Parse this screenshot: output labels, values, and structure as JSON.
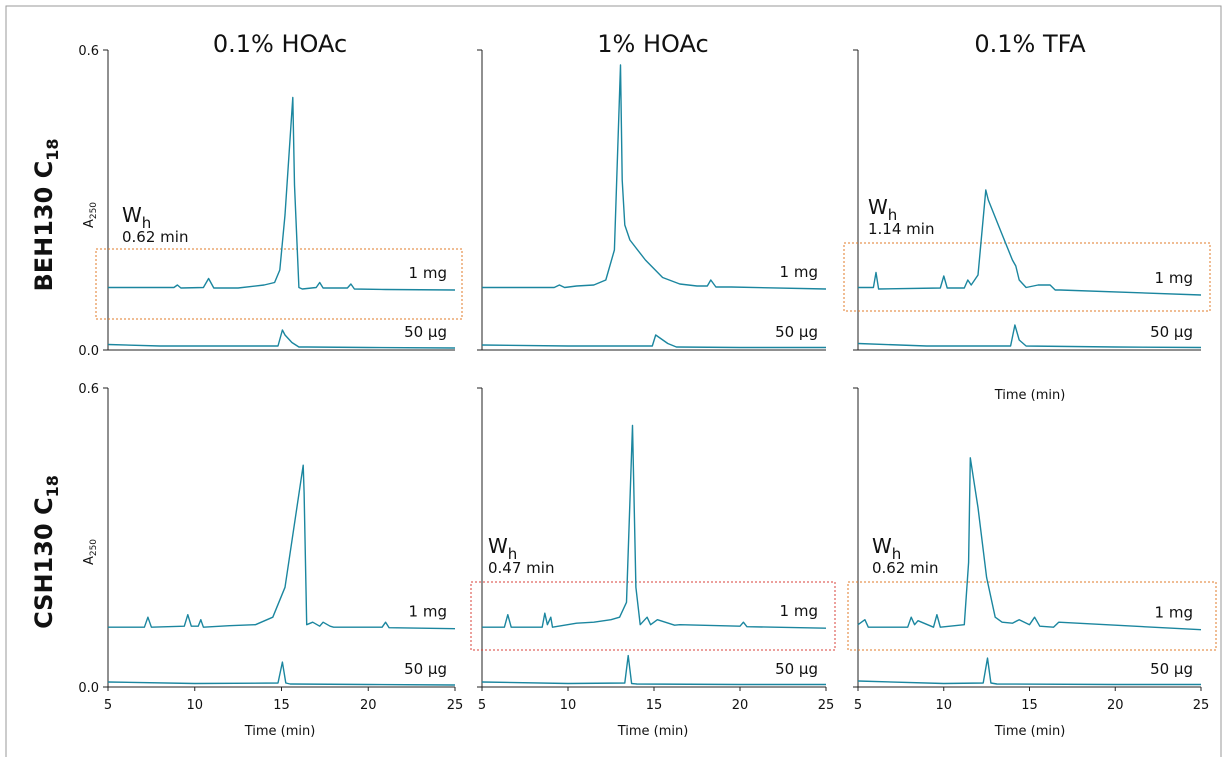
{
  "figure": {
    "column_titles": [
      "0.1% HOAc",
      "1% HOAc",
      "0.1% TFA"
    ],
    "row_labels": [
      {
        "main": "BEH130 C",
        "sub": "18"
      },
      {
        "main": "CSH130 C",
        "sub": "18"
      }
    ],
    "ylabel_main": "A",
    "ylabel_sub": "250",
    "xlabel": "Time (min)",
    "load_labels": {
      "high": "1 mg",
      "low": "50 µg"
    },
    "wh_label": {
      "main": "W",
      "sub": "h"
    },
    "stray_label": "Time (min)"
  },
  "colors": {
    "trace": "#1b869f",
    "box_orange": "#e07b2a",
    "box_red": "#d9423a",
    "frame": "#9a9a9a"
  },
  "chart_data": [
    {
      "type": "line",
      "row": "BEH130 C18",
      "column": "0.1% HOAc",
      "xlim": [
        5,
        25
      ],
      "ylim": [
        0.0,
        0.6
      ],
      "y_ticks": [
        "0.6",
        "0.0"
      ],
      "x_ticks": [],
      "wh": "0.62 min",
      "box_color": "orange",
      "series": [
        {
          "name": "1 mg",
          "x": [
            5,
            8.8,
            9,
            9.2,
            10.5,
            10.8,
            11.1,
            12.5,
            14.0,
            14.6,
            14.9,
            15.2,
            15.65,
            15.75,
            16.0,
            16.2,
            17.0,
            17.2,
            17.4,
            18.8,
            19.0,
            19.2,
            21,
            25
          ],
          "y": [
            0.125,
            0.125,
            0.13,
            0.124,
            0.125,
            0.143,
            0.124,
            0.124,
            0.13,
            0.135,
            0.16,
            0.27,
            0.505,
            0.33,
            0.125,
            0.122,
            0.125,
            0.135,
            0.124,
            0.124,
            0.132,
            0.122,
            0.121,
            0.12
          ]
        },
        {
          "name": "50 µg",
          "x": [
            5,
            8,
            14.8,
            15.05,
            15.2,
            15.6,
            16.0,
            16.5,
            20,
            25
          ],
          "y": [
            0.011,
            0.008,
            0.008,
            0.04,
            0.03,
            0.015,
            0.006,
            0.006,
            0.005,
            0.004
          ]
        }
      ]
    },
    {
      "type": "line",
      "row": "BEH130 C18",
      "column": "1% HOAc",
      "xlim": [
        5,
        25
      ],
      "ylim": [
        0.0,
        0.6
      ],
      "y_ticks": [],
      "x_ticks": [],
      "wh": "",
      "box_color": "",
      "series": [
        {
          "name": "1 mg",
          "x": [
            5,
            9.2,
            9.5,
            9.8,
            10.5,
            11.5,
            12.2,
            12.7,
            13.05,
            13.15,
            13.3,
            13.6,
            14.5,
            15.5,
            16.5,
            17.5,
            18.1,
            18.3,
            18.6,
            19.5,
            25
          ],
          "y": [
            0.125,
            0.125,
            0.13,
            0.125,
            0.128,
            0.13,
            0.14,
            0.2,
            0.57,
            0.34,
            0.25,
            0.22,
            0.18,
            0.145,
            0.132,
            0.128,
            0.128,
            0.14,
            0.126,
            0.126,
            0.122
          ]
        },
        {
          "name": "50 µg",
          "x": [
            5,
            10,
            14.9,
            15.1,
            15.8,
            16.3,
            20,
            25
          ],
          "y": [
            0.01,
            0.008,
            0.008,
            0.03,
            0.013,
            0.006,
            0.005,
            0.005
          ]
        }
      ]
    },
    {
      "type": "line",
      "row": "BEH130 C18",
      "column": "0.1% TFA",
      "xlim": [
        5,
        25
      ],
      "ylim": [
        0.0,
        0.6
      ],
      "y_ticks": [],
      "x_ticks": [],
      "wh": "1.14 min",
      "box_color": "orange",
      "series": [
        {
          "name": "1 mg",
          "x": [
            5,
            5.9,
            6.05,
            6.2,
            9.8,
            10.0,
            10.2,
            11.2,
            11.4,
            11.6,
            12.0,
            12.45,
            12.6,
            13.3,
            14.0,
            14.2,
            14.4,
            14.8,
            15.5,
            16.2,
            16.5,
            16.8,
            25
          ],
          "y": [
            0.125,
            0.125,
            0.155,
            0.122,
            0.124,
            0.148,
            0.124,
            0.124,
            0.14,
            0.13,
            0.15,
            0.32,
            0.3,
            0.24,
            0.18,
            0.168,
            0.14,
            0.125,
            0.13,
            0.13,
            0.12,
            0.12,
            0.11
          ]
        },
        {
          "name": "50 µg",
          "x": [
            5,
            9,
            13.9,
            14.15,
            14.4,
            14.8,
            20,
            25
          ],
          "y": [
            0.013,
            0.008,
            0.008,
            0.05,
            0.02,
            0.008,
            0.006,
            0.005
          ]
        }
      ]
    },
    {
      "type": "line",
      "row": "CSH130 C18",
      "column": "0.1% HOAc",
      "xlim": [
        5,
        25
      ],
      "ylim": [
        0.0,
        0.6
      ],
      "y_ticks": [
        "0.6",
        "0.0"
      ],
      "x_ticks": [
        "5",
        "10",
        "15",
        "20",
        "25"
      ],
      "wh": "",
      "box_color": "",
      "series": [
        {
          "name": "1 mg",
          "x": [
            5,
            7.1,
            7.3,
            7.5,
            9.4,
            9.6,
            9.8,
            10.2,
            10.35,
            10.5,
            12,
            13.5,
            14.5,
            15.2,
            16.25,
            16.3,
            16.45,
            16.8,
            17.2,
            17.4,
            17.8,
            18.0,
            20.8,
            21.0,
            21.2,
            25
          ],
          "y": [
            0.12,
            0.12,
            0.14,
            0.12,
            0.122,
            0.145,
            0.122,
            0.122,
            0.135,
            0.12,
            0.123,
            0.125,
            0.14,
            0.2,
            0.445,
            0.39,
            0.125,
            0.13,
            0.122,
            0.13,
            0.122,
            0.12,
            0.12,
            0.13,
            0.119,
            0.117
          ]
        },
        {
          "name": "50 µg",
          "x": [
            5,
            10,
            14.8,
            15.05,
            15.25,
            15.5,
            20,
            25
          ],
          "y": [
            0.01,
            0.007,
            0.008,
            0.05,
            0.008,
            0.006,
            0.005,
            0.004
          ]
        }
      ]
    },
    {
      "type": "line",
      "row": "CSH130 C18",
      "column": "1% HOAc",
      "xlim": [
        5,
        25
      ],
      "ylim": [
        0.0,
        0.6
      ],
      "y_ticks": [],
      "x_ticks": [
        "5",
        "10",
        "15",
        "20",
        "25"
      ],
      "wh": "0.47 min",
      "box_color": "red",
      "series": [
        {
          "name": "1 mg",
          "x": [
            5,
            6.3,
            6.5,
            6.7,
            8.5,
            8.65,
            8.8,
            9.0,
            9.1,
            10.5,
            11.5,
            12.5,
            13.0,
            13.4,
            13.75,
            13.95,
            14.2,
            14.6,
            14.8,
            15.2,
            16.2,
            16.5,
            20.0,
            20.2,
            20.4,
            25
          ],
          "y": [
            0.12,
            0.12,
            0.145,
            0.12,
            0.12,
            0.148,
            0.125,
            0.14,
            0.12,
            0.128,
            0.13,
            0.135,
            0.14,
            0.17,
            0.525,
            0.2,
            0.125,
            0.14,
            0.125,
            0.135,
            0.124,
            0.125,
            0.122,
            0.13,
            0.121,
            0.118
          ]
        },
        {
          "name": "50 µg",
          "x": [
            5,
            10,
            13.3,
            13.5,
            13.7,
            14.0,
            20,
            25
          ],
          "y": [
            0.01,
            0.007,
            0.008,
            0.063,
            0.007,
            0.006,
            0.005,
            0.005
          ]
        }
      ]
    },
    {
      "type": "line",
      "row": "CSH130 C18",
      "column": "0.1% TFA",
      "xlim": [
        5,
        25
      ],
      "ylim": [
        0.0,
        0.6
      ],
      "y_ticks": [],
      "x_ticks": [
        "5",
        "10",
        "15",
        "20",
        "25"
      ],
      "wh": "0.62 min",
      "box_color": "orange",
      "series": [
        {
          "name": "1 mg",
          "x": [
            5,
            5.4,
            5.6,
            7.9,
            8.1,
            8.3,
            8.5,
            9.4,
            9.6,
            9.8,
            11.2,
            11.45,
            11.55,
            12.0,
            12.5,
            13.0,
            13.4,
            14.0,
            14.4,
            15.0,
            15.3,
            15.6,
            16.4,
            16.7,
            25
          ],
          "y": [
            0.125,
            0.135,
            0.12,
            0.12,
            0.14,
            0.125,
            0.133,
            0.12,
            0.145,
            0.12,
            0.125,
            0.25,
            0.46,
            0.36,
            0.22,
            0.14,
            0.13,
            0.128,
            0.135,
            0.125,
            0.14,
            0.122,
            0.12,
            0.13,
            0.115
          ]
        },
        {
          "name": "50 µg",
          "x": [
            5,
            10,
            12.3,
            12.55,
            12.75,
            13.1,
            20,
            25
          ],
          "y": [
            0.012,
            0.007,
            0.008,
            0.058,
            0.008,
            0.006,
            0.005,
            0.005
          ]
        }
      ]
    }
  ]
}
